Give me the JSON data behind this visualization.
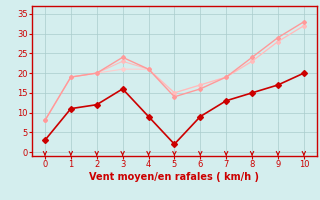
{
  "x": [
    0,
    1,
    2,
    3,
    4,
    5,
    6,
    7,
    8,
    9,
    10
  ],
  "line1_y": [
    3,
    11,
    12,
    16,
    9,
    2,
    9,
    13,
    15,
    17,
    20
  ],
  "line2_y": [
    8,
    19,
    20,
    24,
    21,
    14,
    16,
    19,
    24,
    29,
    33
  ],
  "line3_y": [
    8,
    19,
    20,
    23,
    21,
    15,
    17,
    19,
    23,
    28,
    32
  ],
  "line4_y": [
    8,
    19,
    20,
    21,
    21,
    15,
    17,
    19,
    23,
    28,
    32
  ],
  "line1_color": "#cc0000",
  "line2_color": "#ffb3b3",
  "line3_color": "#ffb3b3",
  "line4_color": "#ffb3b3",
  "marker": "D",
  "marker_size": 2,
  "xlabel": "Vent moyen/en rafales ( km/h )",
  "xlabel_color": "#cc0000",
  "xlabel_fontsize": 7,
  "ylabel_ticks": [
    0,
    5,
    10,
    15,
    20,
    25,
    30,
    35
  ],
  "xlim": [
    -0.5,
    10.5
  ],
  "ylim": [
    -1,
    37
  ],
  "bg_color": "#d4eeee",
  "grid_color": "#aacccc",
  "tick_color": "#cc0000",
  "axis_color": "#cc0000",
  "arrow_color": "#cc0000",
  "tick_fontsize": 6
}
